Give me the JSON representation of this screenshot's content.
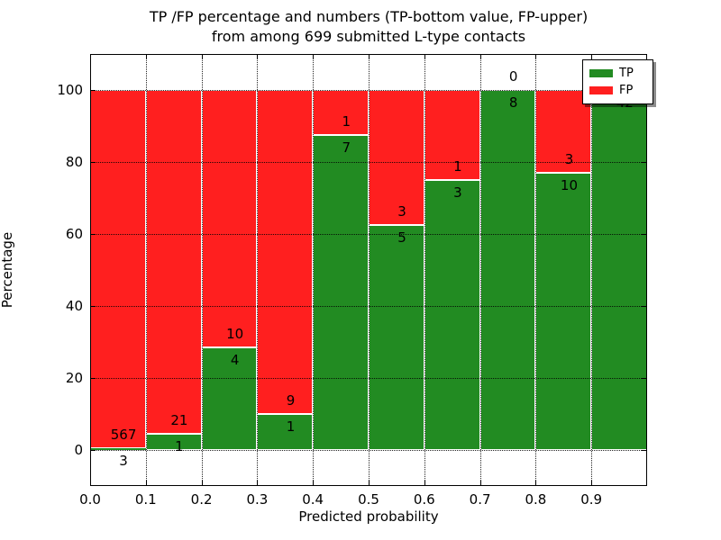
{
  "figure": {
    "title_line1": "TP /FP percentage and numbers (TP-bottom value, FP-upper)",
    "title_line2": "from among 699 submitted L-type contacts",
    "xlabel": "Predicted probability",
    "ylabel": "Percentage"
  },
  "chart_data": {
    "type": "bar",
    "stacked": true,
    "normalized_to_percent": true,
    "title": "TP /FP percentage and numbers (TP-bottom value, FP-upper) from among 699 submitted L-type contacts",
    "xlabel": "Predicted probability",
    "ylabel": "Percentage",
    "total_contacts": 699,
    "bin_width": 0.1,
    "bin_starts": [
      0.0,
      0.1,
      0.2,
      0.3,
      0.4,
      0.5,
      0.6,
      0.7,
      0.8,
      0.9
    ],
    "xticks": [
      "0.0",
      "0.1",
      "0.2",
      "0.3",
      "0.4",
      "0.5",
      "0.6",
      "0.7",
      "0.8",
      "0.9"
    ],
    "yticks": [
      0,
      20,
      40,
      60,
      80,
      100
    ],
    "xlim": [
      0.0,
      1.0
    ],
    "ylim": [
      -10,
      110
    ],
    "grid": "dotted both axes, drawn over bars",
    "series": [
      {
        "name": "TP",
        "color": "#228b22",
        "counts": [
          3,
          1,
          4,
          1,
          7,
          5,
          3,
          8,
          10,
          42
        ]
      },
      {
        "name": "FP",
        "color": "#ff1f1f",
        "counts": [
          567,
          21,
          10,
          9,
          1,
          3,
          1,
          0,
          3,
          0
        ]
      }
    ],
    "tp_percent_per_bin": [
      0.53,
      4.55,
      28.57,
      10.0,
      87.5,
      62.5,
      75.0,
      100.0,
      76.92,
      100.0
    ],
    "legend": {
      "position": "upper right",
      "entries": [
        {
          "label": "TP",
          "color": "#228b22"
        },
        {
          "label": "FP",
          "color": "#ff1f1f"
        }
      ]
    },
    "label_note": "TP count printed just below TP/FP boundary, FP count just above it"
  },
  "layout_colors": {
    "background": "#ffffff",
    "axis": "#000000",
    "bar_edge": "#ffffff"
  }
}
